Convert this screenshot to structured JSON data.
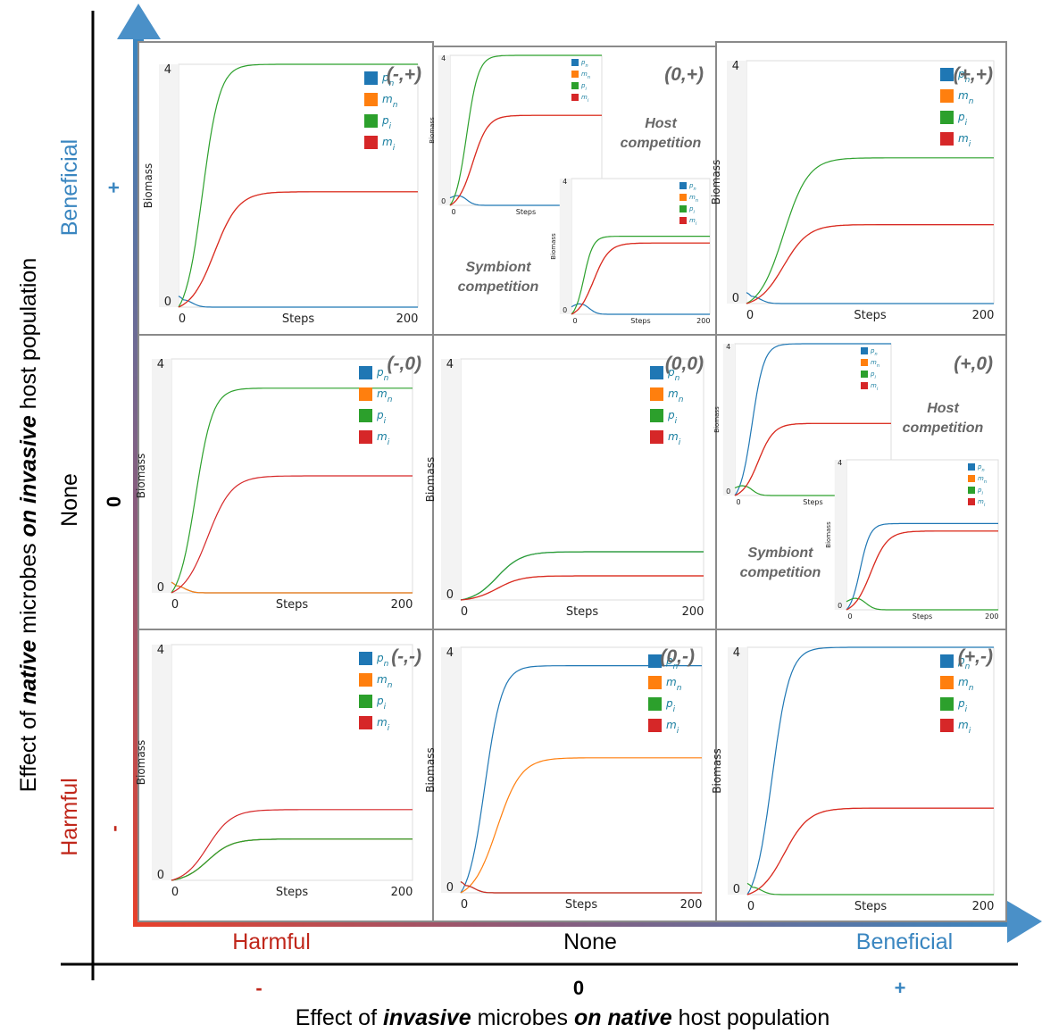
{
  "y_axis": {
    "title_parts": [
      "Effect of ",
      "native",
      " microbes ",
      "on invasive",
      " host population"
    ],
    "ticks": [
      {
        "category": "Beneficial",
        "sign": "+"
      },
      {
        "category": "None",
        "sign": "0"
      },
      {
        "category": "Harmful",
        "sign": "-"
      }
    ]
  },
  "x_axis": {
    "title_parts": [
      "Effect of ",
      "invasive",
      " microbes ",
      "on native",
      " host population"
    ],
    "ticks": [
      {
        "category": "Harmful",
        "sign": "-"
      },
      {
        "category": "None",
        "sign": "0"
      },
      {
        "category": "Beneficial",
        "sign": "+"
      }
    ]
  },
  "colors": {
    "harmful": "#c0271b",
    "beneficial": "#3a86c0",
    "p_n": "#1f77b4",
    "m_n": "#ff7f0e",
    "p_i": "#2ca02c",
    "m_i": "#d62728"
  },
  "legend_labels": [
    "p",
    "m",
    "p",
    "m"
  ],
  "legend_subs": [
    "n",
    "n",
    "i",
    "i"
  ],
  "plot_text": {
    "ylabel": "Biomass",
    "xlabel": "Steps",
    "ymin": "0",
    "ymax": "4",
    "xmin": "0",
    "xmax": "200"
  },
  "subplot_text": {
    "host": [
      "Host",
      "competition"
    ],
    "symbiont": [
      "Symbiont",
      "competition"
    ]
  },
  "chart_data": [
    {
      "type": "line",
      "id": "(-,+)",
      "title": "(-,+)",
      "xlabel": "Steps",
      "ylabel": "Biomass",
      "xlim": [
        0,
        200
      ],
      "ylim": [
        0,
        4
      ],
      "series": [
        {
          "name": "p_n",
          "values": [
            0.0,
            0.0
          ]
        },
        {
          "name": "m_n",
          "values": [
            0.0,
            1.9
          ]
        },
        {
          "name": "p_i",
          "values": [
            0.0,
            4.0
          ]
        },
        {
          "name": "m_i",
          "values": [
            0.0,
            1.9
          ]
        }
      ]
    },
    {
      "type": "line",
      "id": "(0,+)",
      "title": "(0,+)",
      "note": "Host competition / Symbiont competition",
      "xlabel": "Steps",
      "ylabel": "Biomass",
      "xlim": [
        0,
        200
      ],
      "ylim": [
        0,
        4
      ],
      "series": [
        {
          "name": "p_n",
          "values": [
            0.0,
            0.0
          ]
        },
        {
          "name": "m_n",
          "values": [
            0.0,
            2.4
          ]
        },
        {
          "name": "p_i",
          "values": [
            0.0,
            4.0
          ]
        },
        {
          "name": "m_i",
          "values": [
            0.0,
            2.4
          ]
        }
      ]
    },
    {
      "type": "line",
      "id": "(+,+)",
      "title": "(+,+)",
      "xlabel": "Steps",
      "ylabel": "Biomass",
      "xlim": [
        0,
        200
      ],
      "ylim": [
        0,
        4
      ],
      "series": [
        {
          "name": "p_n",
          "values": [
            0.0,
            0.0
          ]
        },
        {
          "name": "m_n",
          "values": [
            0.0,
            1.3
          ]
        },
        {
          "name": "p_i",
          "values": [
            0.0,
            2.4
          ]
        },
        {
          "name": "m_i",
          "values": [
            0.0,
            1.3
          ]
        }
      ]
    },
    {
      "type": "line",
      "id": "(-,0)",
      "title": "(-,0)",
      "xlabel": "Steps",
      "ylabel": "Biomass",
      "xlim": [
        0,
        200
      ],
      "ylim": [
        0,
        4
      ],
      "series": [
        {
          "name": "p_n",
          "values": [
            0.0,
            0.0
          ]
        },
        {
          "name": "m_n",
          "values": [
            0.0,
            0.0
          ]
        },
        {
          "name": "p_i",
          "values": [
            0.0,
            3.5
          ]
        },
        {
          "name": "m_i",
          "values": [
            0.0,
            2.0
          ]
        }
      ]
    },
    {
      "type": "line",
      "id": "(0,0)",
      "title": "(0,0)",
      "xlabel": "Steps",
      "ylabel": "Biomass",
      "xlim": [
        0,
        200
      ],
      "ylim": [
        0,
        4
      ],
      "series": [
        {
          "name": "p_n",
          "values": [
            0.0,
            0.8
          ]
        },
        {
          "name": "m_n",
          "values": [
            0.0,
            0.4
          ]
        },
        {
          "name": "p_i",
          "values": [
            0.0,
            0.8
          ]
        },
        {
          "name": "m_i",
          "values": [
            0.0,
            0.4
          ]
        }
      ]
    },
    {
      "type": "line",
      "id": "(+,0)",
      "title": "(+,0)",
      "note": "Host competition / Symbiont competition",
      "xlabel": "Steps",
      "ylabel": "Biomass",
      "xlim": [
        0,
        200
      ],
      "ylim": [
        0,
        4
      ],
      "series": [
        {
          "name": "p_n",
          "values": [
            0.0,
            4.0
          ]
        },
        {
          "name": "m_n",
          "values": [
            0.0,
            1.9
          ]
        },
        {
          "name": "p_i",
          "values": [
            0.0,
            0.0
          ]
        },
        {
          "name": "m_i",
          "values": [
            0.0,
            1.9
          ]
        }
      ]
    },
    {
      "type": "line",
      "id": "(-,-)",
      "title": "(-,-)",
      "xlabel": "Steps",
      "ylabel": "Biomass",
      "xlim": [
        0,
        200
      ],
      "ylim": [
        0,
        4
      ],
      "series": [
        {
          "name": "p_n",
          "values": [
            0.0,
            0.7
          ]
        },
        {
          "name": "m_n",
          "values": [
            0.0,
            0.7
          ]
        },
        {
          "name": "p_i",
          "values": [
            0.0,
            0.7
          ]
        },
        {
          "name": "m_i",
          "values": [
            0.0,
            1.2
          ]
        }
      ]
    },
    {
      "type": "line",
      "id": "(0,-)",
      "title": "(0,-)",
      "xlabel": "Steps",
      "ylabel": "Biomass",
      "xlim": [
        0,
        200
      ],
      "ylim": [
        0,
        4
      ],
      "series": [
        {
          "name": "p_n",
          "values": [
            0.0,
            3.7
          ]
        },
        {
          "name": "m_n",
          "values": [
            0.0,
            2.2
          ]
        },
        {
          "name": "p_i",
          "values": [
            0.0,
            0.0
          ]
        },
        {
          "name": "m_i",
          "values": [
            0.0,
            0.0
          ]
        }
      ]
    },
    {
      "type": "line",
      "id": "(+,-)",
      "title": "(+,-)",
      "xlabel": "Steps",
      "ylabel": "Biomass",
      "xlim": [
        0,
        200
      ],
      "ylim": [
        0,
        4
      ],
      "series": [
        {
          "name": "p_n",
          "values": [
            0.0,
            4.0
          ]
        },
        {
          "name": "m_n",
          "values": [
            0.0,
            1.4
          ]
        },
        {
          "name": "p_i",
          "values": [
            0.0,
            0.0
          ]
        },
        {
          "name": "m_i",
          "values": [
            0.0,
            1.4
          ]
        }
      ]
    }
  ]
}
